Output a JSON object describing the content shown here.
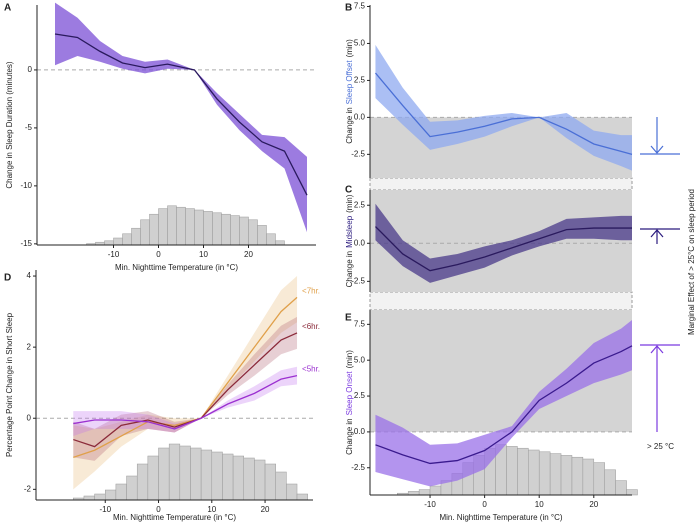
{
  "chart_data": [
    {
      "type": "line",
      "panel": "A",
      "ylabel": "Change in Sleep Duration (minutes)",
      "xlabel": "Min. Nighttime Temperature (in °C)",
      "xlim": [
        -27,
        35
      ],
      "xticks": [
        -10,
        0,
        10,
        20
      ],
      "ylim": [
        -15.1,
        5.6
      ],
      "yticks": [
        0,
        -5,
        -10,
        -15
      ],
      "zero_line": true,
      "x": [
        -23,
        -18,
        -13,
        -8,
        -3,
        2,
        8,
        13,
        18,
        23,
        28,
        33
      ],
      "series": [
        {
          "color": "#2a1a5e",
          "band_color": "#7b4fd6",
          "values": [
            3.1,
            2.8,
            1.6,
            0.6,
            0.2,
            0.5,
            0,
            -2.5,
            -4.5,
            -6.2,
            -7,
            -10.8
          ],
          "lower": [
            0.4,
            1.2,
            0.7,
            0.1,
            -0.3,
            0.1,
            0,
            -3,
            -5.2,
            -7,
            -8.5,
            -14
          ],
          "upper": [
            5.8,
            4.5,
            2.5,
            1.2,
            0.7,
            0.9,
            0,
            -2,
            -3.8,
            -5.6,
            -5.8,
            -7.5
          ]
        }
      ],
      "hist_bins": [
        -16,
        -14,
        -12,
        -10,
        -8,
        -6,
        -4,
        -2,
        0,
        2,
        4,
        6,
        8,
        10,
        12,
        14,
        16,
        18,
        20,
        22,
        24,
        26,
        28
      ],
      "hist_counts": [
        1,
        2,
        3,
        5,
        8,
        12,
        18,
        22,
        26,
        28,
        27,
        26,
        25,
        24,
        23,
        22,
        21,
        20,
        18,
        14,
        8,
        3
      ]
    },
    {
      "type": "line",
      "panel": "B",
      "ylabel_prefix": "Change in",
      "ylabel_key": "Sleep Offset",
      "ylabel_suffix": "(min)",
      "key_color": "#4a6fd6",
      "xlim": [
        -21,
        27
      ],
      "ylim": [
        -4.1,
        7.6
      ],
      "yticks": [
        -2.5,
        {
          "value": 0,
          "label": "0.0"
        },
        2.5,
        {
          "value": 5,
          "label": "5.0"
        },
        7.5
      ],
      "zero_line": true,
      "shade": "below",
      "x": [
        -20,
        -15,
        -10,
        -5,
        0,
        5,
        10,
        15,
        20,
        25,
        27
      ],
      "series": [
        {
          "color": "#4a6fd6",
          "band_color": "#8fa9f0",
          "values": [
            3.0,
            0.8,
            -1.3,
            -1.0,
            -0.6,
            -0.1,
            0,
            -0.8,
            -1.8,
            -2.3,
            -2.5
          ],
          "lower": [
            1.3,
            -0.5,
            -2.2,
            -1.8,
            -1.3,
            -0.6,
            0,
            -1.4,
            -2.6,
            -3.3,
            -3.6
          ],
          "upper": [
            4.9,
            2.0,
            -0.3,
            -0.2,
            0.1,
            0.3,
            0,
            0.3,
            -0.9,
            -1.2,
            -1.2
          ]
        }
      ]
    },
    {
      "type": "line",
      "panel": "C",
      "ylabel_prefix": "Change in",
      "ylabel_key": "Midsleep",
      "ylabel_suffix": "(min)",
      "key_color": "#2a1a7e",
      "xlim": [
        -21,
        27
      ],
      "ylim": [
        -3.2,
        3.5
      ],
      "yticks": [
        -2.5,
        {
          "value": 0,
          "label": "0.0"
        },
        2.5
      ],
      "zero_line": true,
      "shade": "all",
      "x": [
        -20,
        -15,
        -10,
        -5,
        0,
        5,
        10,
        15,
        20,
        25,
        27
      ],
      "series": [
        {
          "color": "#2a1a5e",
          "band_color": "#4a3a8a",
          "values": [
            1.1,
            -0.7,
            -1.8,
            -1.4,
            -0.9,
            -0.3,
            0.3,
            0.9,
            1.0,
            1.0,
            1.0
          ],
          "lower": [
            0.2,
            -1.5,
            -2.6,
            -2.1,
            -1.6,
            -0.8,
            -0.2,
            0.3,
            0.3,
            0.2,
            0.2
          ],
          "upper": [
            2.6,
            0.2,
            -1.0,
            -0.7,
            -0.2,
            0.2,
            0.8,
            1.6,
            1.7,
            1.8,
            1.8
          ]
        }
      ]
    },
    {
      "type": "line",
      "panel": "D",
      "ylabel": "Percentage Point Change in Short Sleep",
      "xlabel": "Min. Nighttime Temperature (in °C)",
      "xlim": [
        -23,
        29
      ],
      "xticks": [
        -10,
        0,
        10,
        20
      ],
      "ylim": [
        -2.3,
        4.17
      ],
      "yticks": [
        -2,
        0,
        2,
        4
      ],
      "zero_line": true,
      "x": [
        -16,
        -12,
        -7,
        -2,
        3,
        8,
        13,
        18,
        23,
        26
      ],
      "series": [
        {
          "name": "<7hr.",
          "color": "#e0a04a",
          "band_color": "#e8b878",
          "values": [
            -1.1,
            -0.9,
            -0.5,
            -0.1,
            -0.2,
            0,
            1.0,
            2.0,
            3.0,
            3.4
          ],
          "lower": [
            -2.0,
            -1.5,
            -0.8,
            -0.3,
            -0.4,
            0,
            0.8,
            1.6,
            2.4,
            2.7
          ],
          "upper": [
            -0.2,
            -0.3,
            -0.1,
            0.1,
            0,
            0,
            1.2,
            2.4,
            3.6,
            4.0
          ]
        },
        {
          "name": "<6hr.",
          "color": "#8b2a3a",
          "band_color": "#b06070",
          "values": [
            -0.6,
            -0.8,
            -0.2,
            -0.05,
            -0.25,
            0,
            0.8,
            1.5,
            2.2,
            2.4
          ],
          "lower": [
            -1.1,
            -1.2,
            -0.5,
            -0.3,
            -0.4,
            0,
            0.65,
            1.2,
            1.8,
            1.95
          ],
          "upper": [
            -0.1,
            -0.3,
            0.1,
            0.2,
            -0.1,
            0,
            0.95,
            1.8,
            2.6,
            2.85
          ]
        },
        {
          "name": "<5hr.",
          "color": "#9b30d0",
          "band_color": "#c070f0",
          "values": [
            -0.15,
            -0.05,
            -0.05,
            -0.1,
            -0.3,
            0,
            0.4,
            0.7,
            1.1,
            1.2
          ],
          "lower": [
            -0.5,
            -0.3,
            -0.3,
            -0.3,
            -0.4,
            0,
            0.3,
            0.5,
            0.9,
            0.95
          ],
          "upper": [
            0.2,
            0.2,
            0.2,
            0.1,
            -0.15,
            0,
            0.5,
            0.9,
            1.35,
            1.45
          ]
        }
      ],
      "hist_bins": [
        -16,
        -14,
        -12,
        -10,
        -8,
        -6,
        -4,
        -2,
        0,
        2,
        4,
        6,
        8,
        10,
        12,
        14,
        16,
        18,
        20,
        22,
        24,
        26,
        28
      ],
      "hist_counts": [
        1,
        2,
        3,
        5,
        8,
        12,
        18,
        22,
        26,
        28,
        27,
        26,
        25,
        24,
        23,
        22,
        21,
        20,
        18,
        14,
        8,
        3
      ]
    },
    {
      "type": "line",
      "panel": "E",
      "ylabel_prefix": "Change in",
      "ylabel_key": "Sleep Onset",
      "ylabel_suffix": "(min)",
      "key_color": "#7b3ae0",
      "xlabel": "Min. Nighttime Temperature (in °C)",
      "xlim": [
        -21,
        27
      ],
      "xticks": [
        -10,
        0,
        10,
        20
      ],
      "ylim": [
        -4.4,
        8.5
      ],
      "yticks": [
        -2.5,
        {
          "value": 0,
          "label": "0.0"
        },
        2.5,
        {
          "value": 5,
          "label": "5.0"
        },
        7.5
      ],
      "zero_line": true,
      "shade": "above",
      "x": [
        -20,
        -15,
        -10,
        -5,
        0,
        5,
        10,
        15,
        20,
        25,
        27
      ],
      "series": [
        {
          "color": "#3a1a8e",
          "band_color": "#9a70e8",
          "values": [
            -0.9,
            -1.6,
            -2.2,
            -2.0,
            -1.3,
            0,
            2.2,
            3.4,
            4.8,
            5.6,
            6.0
          ],
          "lower": [
            -2.8,
            -3.3,
            -3.8,
            -3.4,
            -2.6,
            -0.4,
            1.6,
            2.5,
            3.4,
            4.0,
            4.3
          ],
          "upper": [
            1.2,
            0.3,
            -0.9,
            -0.8,
            -0.2,
            0.4,
            2.8,
            4.4,
            6.2,
            7.2,
            7.8
          ]
        }
      ],
      "hist_bins": [
        -16,
        -14,
        -12,
        -10,
        -8,
        -6,
        -4,
        -2,
        0,
        2,
        4,
        6,
        8,
        10,
        12,
        14,
        16,
        18,
        20,
        22,
        24,
        26,
        28
      ],
      "hist_counts": [
        1,
        2,
        3,
        5,
        8,
        12,
        18,
        22,
        26,
        28,
        27,
        26,
        25,
        24,
        23,
        22,
        21,
        20,
        18,
        14,
        8,
        3
      ]
    }
  ],
  "side_note": {
    "label": "Marginal Effect of > 25°C on sleep period",
    "threshold": "> 25 °C"
  }
}
